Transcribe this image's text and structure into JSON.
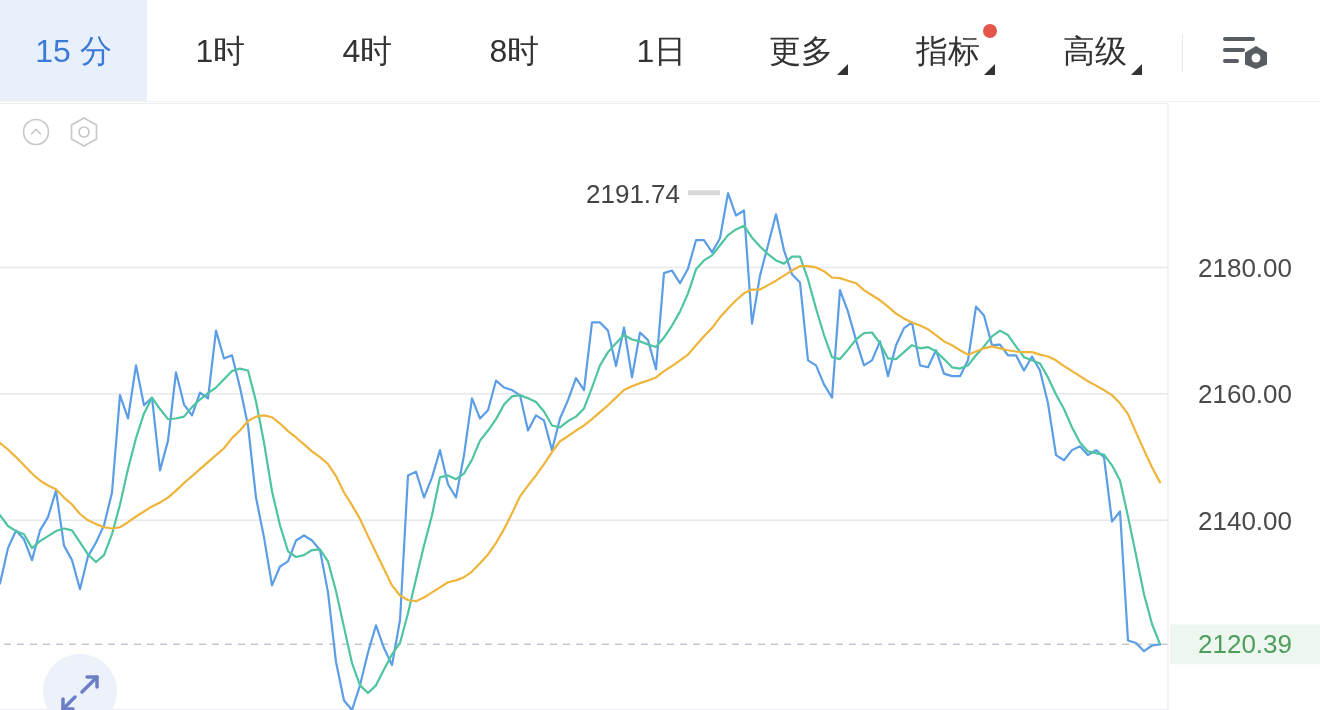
{
  "chart_data": [
    {
      "type": "other",
      "annotations": [
        "15 分",
        "1时",
        "4时",
        "8时",
        "1日",
        "更多",
        "指标",
        "高级"
      ]
    },
    {
      "type": "line",
      "categories": [
        null,
        null,
        null,
        null,
        null,
        null,
        null,
        null,
        null,
        null,
        null,
        null,
        null,
        null,
        null,
        null,
        null,
        null,
        null,
        null,
        null,
        null,
        null,
        null,
        null,
        null,
        null,
        null,
        null,
        null,
        null,
        null,
        null,
        null,
        null,
        null,
        null,
        null,
        null,
        null,
        null,
        null,
        null,
        null,
        null,
        null,
        null,
        null,
        null,
        null,
        null,
        null,
        null,
        null,
        null,
        null,
        null,
        null,
        null,
        null,
        null,
        null,
        null,
        null,
        null,
        null,
        null,
        null,
        null,
        null,
        null,
        null,
        null,
        null,
        null,
        null,
        null,
        null,
        null,
        null,
        null,
        null,
        null,
        null,
        null,
        null,
        null,
        null,
        null,
        null,
        null,
        null,
        null,
        null,
        null,
        null,
        null,
        null,
        null,
        null,
        null,
        null,
        null,
        null,
        null,
        null,
        null,
        null,
        null,
        null,
        null,
        null,
        null,
        null,
        null,
        null,
        null,
        null,
        null,
        null,
        null,
        null,
        null,
        null,
        null,
        null,
        null,
        null,
        null,
        null,
        null,
        null,
        null,
        null,
        null,
        null,
        null,
        null,
        null,
        null,
        null,
        null,
        null,
        null,
        null,
        null
      ],
      "series": [
        {
          "color": "#5c9ee6",
          "values": [
            2130.0,
            2135.6,
            2138.4,
            2137.0,
            2133.7,
            2138.4,
            2140.5,
            2144.7,
            2136.0,
            2133.7,
            2129.1,
            2134.3,
            2136.5,
            2139.2,
            2144.4,
            2159.8,
            2156.1,
            2164.5,
            2158.2,
            2159.4,
            2147.9,
            2152.6,
            2163.4,
            2158.3,
            2156.6,
            2160.2,
            2159.3,
            2170.0,
            2165.6,
            2166.1,
            2161.0,
            2155.0,
            2143.6,
            2137.3,
            2129.7,
            2132.7,
            2133.5,
            2136.8,
            2137.6,
            2136.8,
            2135.3,
            2128.6,
            2117.6,
            2111.5,
            2110.0,
            2113.9,
            2119.1,
            2123.4,
            2119.8,
            2117.1,
            2124.2,
            2147.1,
            2147.7,
            2143.6,
            2146.8,
            2151.1,
            2145.7,
            2143.6,
            2150.3,
            2159.3,
            2156.1,
            2157.4,
            2162.1,
            2161.0,
            2160.6,
            2159.8,
            2154.2,
            2156.6,
            2155.8,
            2151.1,
            2156.1,
            2159.0,
            2162.5,
            2160.6,
            2171.3,
            2171.3,
            2170.0,
            2164.4,
            2170.5,
            2162.6,
            2169.7,
            2168.5,
            2163.9,
            2179.1,
            2179.5,
            2177.5,
            2179.8,
            2184.3,
            2184.3,
            2182.4,
            2184.6,
            2191.74,
            2188.2,
            2189.0,
            2171.1,
            2178.7,
            2183.5,
            2188.4,
            2182.7,
            2178.9,
            2177.6,
            2165.3,
            2164.5,
            2161.5,
            2159.4,
            2176.4,
            2173.0,
            2168.5,
            2164.5,
            2165.3,
            2168.3,
            2162.8,
            2167.7,
            2170.4,
            2171.3,
            2164.5,
            2164.2,
            2166.9,
            2163.2,
            2162.8,
            2162.8,
            2165.3,
            2173.8,
            2172.4,
            2167.7,
            2167.8,
            2166.1,
            2166.1,
            2163.7,
            2165.9,
            2163.7,
            2158.5,
            2150.3,
            2149.5,
            2151.1,
            2151.7,
            2150.3,
            2151.1,
            2150.0,
            2139.8,
            2141.4,
            2121.0,
            2120.6,
            2119.3,
            2120.2,
            2120.39
          ]
        },
        {
          "color": "#4fc4a2",
          "values": [
            2140.8,
            2139.1,
            2138.3,
            2137.8,
            2135.6,
            2136.7,
            2137.5,
            2138.3,
            2138.7,
            2138.4,
            2136.5,
            2134.6,
            2133.4,
            2134.5,
            2137.8,
            2142.5,
            2148.1,
            2153.0,
            2156.9,
            2159.4,
            2157.6,
            2156.0,
            2156.1,
            2156.4,
            2157.9,
            2159.1,
            2160.1,
            2161.0,
            2162.3,
            2163.6,
            2164.0,
            2163.7,
            2158.8,
            2152.3,
            2144.6,
            2139.2,
            2135.1,
            2134.2,
            2134.5,
            2135.3,
            2135.4,
            2133.5,
            2128.8,
            2123.1,
            2117.4,
            2113.9,
            2112.7,
            2113.9,
            2116.4,
            2118.8,
            2120.6,
            2125.3,
            2130.7,
            2136.0,
            2140.8,
            2146.8,
            2147.1,
            2146.5,
            2147.4,
            2149.6,
            2152.6,
            2154.2,
            2156.0,
            2158.3,
            2159.6,
            2159.8,
            2159.3,
            2158.7,
            2157.2,
            2155.0,
            2154.7,
            2155.7,
            2156.4,
            2157.7,
            2161.0,
            2164.5,
            2166.6,
            2168.0,
            2169.3,
            2168.6,
            2168.3,
            2167.8,
            2167.4,
            2168.9,
            2170.8,
            2173.0,
            2175.9,
            2179.7,
            2181.1,
            2181.9,
            2183.5,
            2185.1,
            2186.0,
            2186.6,
            2184.7,
            2183.3,
            2182.1,
            2181.1,
            2180.6,
            2181.7,
            2181.7,
            2178.1,
            2173.5,
            2169.3,
            2165.8,
            2165.5,
            2167.0,
            2168.6,
            2169.6,
            2169.7,
            2168.0,
            2165.6,
            2165.5,
            2166.6,
            2167.7,
            2167.2,
            2167.4,
            2166.7,
            2165.5,
            2164.2,
            2164.0,
            2164.5,
            2166.1,
            2167.5,
            2169.1,
            2170.0,
            2169.3,
            2167.5,
            2165.8,
            2165.3,
            2164.8,
            2162.6,
            2159.9,
            2157.6,
            2154.7,
            2152.3,
            2150.9,
            2150.6,
            2150.4,
            2148.7,
            2146.3,
            2140.6,
            2134.5,
            2128.3,
            2123.6,
            2120.4
          ]
        },
        {
          "color": "#efb43a",
          "values": [
            2152.2,
            2151.2,
            2150.0,
            2148.7,
            2147.4,
            2146.3,
            2145.5,
            2144.9,
            2143.6,
            2142.5,
            2141.0,
            2140.0,
            2139.4,
            2138.9,
            2138.7,
            2138.9,
            2139.7,
            2140.6,
            2141.4,
            2142.2,
            2142.8,
            2143.6,
            2144.7,
            2145.9,
            2147.0,
            2148.1,
            2149.2,
            2150.3,
            2151.4,
            2153.0,
            2154.2,
            2155.7,
            2156.4,
            2156.6,
            2156.3,
            2155.3,
            2154.1,
            2153.1,
            2152.0,
            2150.9,
            2150.0,
            2148.9,
            2147.0,
            2144.4,
            2142.4,
            2140.2,
            2137.5,
            2134.9,
            2132.3,
            2129.7,
            2128.1,
            2127.4,
            2127.2,
            2127.8,
            2128.6,
            2129.4,
            2130.2,
            2130.5,
            2131.0,
            2131.9,
            2133.2,
            2134.6,
            2136.4,
            2138.6,
            2141.1,
            2143.8,
            2145.5,
            2147.1,
            2148.9,
            2150.8,
            2152.5,
            2153.3,
            2154.2,
            2155.0,
            2156.0,
            2157.1,
            2158.2,
            2159.4,
            2160.6,
            2161.2,
            2161.7,
            2162.1,
            2162.6,
            2163.6,
            2164.4,
            2165.3,
            2166.2,
            2167.7,
            2169.1,
            2170.4,
            2172.1,
            2173.5,
            2174.8,
            2175.9,
            2176.5,
            2176.5,
            2177.2,
            2177.9,
            2178.7,
            2179.5,
            2180.2,
            2180.2,
            2180.0,
            2179.4,
            2178.4,
            2178.3,
            2177.9,
            2177.5,
            2176.4,
            2175.6,
            2174.8,
            2173.8,
            2172.7,
            2171.9,
            2171.3,
            2170.8,
            2170.2,
            2169.3,
            2168.3,
            2167.7,
            2166.9,
            2166.2,
            2166.7,
            2167.2,
            2167.5,
            2167.2,
            2166.9,
            2166.7,
            2166.6,
            2166.6,
            2166.2,
            2165.9,
            2165.3,
            2164.4,
            2163.6,
            2162.8,
            2162.0,
            2161.3,
            2160.6,
            2159.8,
            2158.5,
            2156.8,
            2153.9,
            2151.1,
            2148.4,
            2146.0
          ]
        }
      ],
      "ylim": [
        2110,
        2206
      ],
      "yticks": [
        {
          "value": 2140,
          "label": "2140.00"
        },
        {
          "value": 2160,
          "label": "2160.00"
        },
        {
          "value": 2180,
          "label": "2180.00"
        }
      ],
      "grid": "y",
      "marker": "none",
      "line_style": "solid",
      "tick_labels": "y",
      "ref_lines": [
        {
          "axis": "y",
          "value": 2120.39,
          "label": "2120.39",
          "color": "#c3c7d0",
          "line_style": "dashed"
        }
      ],
      "annotations": [
        "2191.74"
      ]
    }
  ]
}
